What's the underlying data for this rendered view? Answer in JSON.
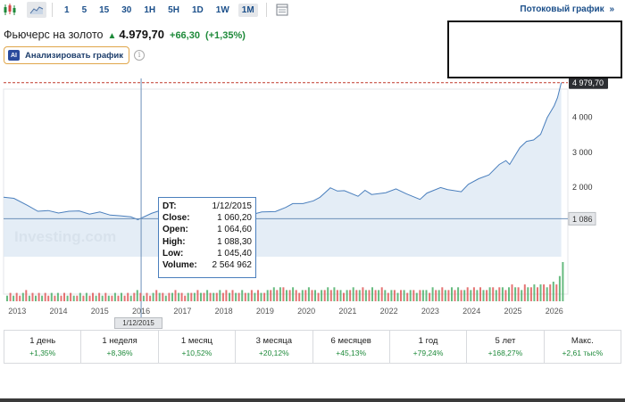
{
  "toolbar": {
    "periods": [
      "1",
      "5",
      "15",
      "30",
      "1H",
      "5H",
      "1D",
      "1W",
      "1M"
    ],
    "active_period": "1M",
    "stream_link": "Потоковый график",
    "stream_link_icon": "double-chevron-right-icon"
  },
  "instrument": {
    "name": "Фьючерс на золото",
    "price": "4.979,70",
    "change": "+66,30",
    "change_pct": "(+1,35%)",
    "direction_icon": "arrow-up-icon"
  },
  "analyze_button": {
    "badge": "AI",
    "label": "Анализировать график"
  },
  "tooltip": {
    "rows": [
      {
        "label": "DT:",
        "value": "1/12/2015"
      },
      {
        "label": "Close:",
        "value": "1 060,20"
      },
      {
        "label": "Open:",
        "value": "1 064,60"
      },
      {
        "label": "High:",
        "value": "1 088,30"
      },
      {
        "label": "Low:",
        "value": "1 045,40"
      },
      {
        "label": "Volume:",
        "value": "2 564 962"
      }
    ]
  },
  "crosshair_date": "1/12/2015",
  "watermark": "Investing.com",
  "colors": {
    "accent": "#1b4f8a",
    "positive": "#1e8a3a",
    "line": "#4a7fbd",
    "area": "#dde8f4",
    "last_price_line": "#c0392b",
    "vol_up": "#4caf6a",
    "vol_down": "#e15b5b"
  },
  "chart_data": {
    "type": "area",
    "title": "Фьючерс на золото",
    "ylim": [
      0,
      5100
    ],
    "y_ticks": [
      {
        "label": "1 086",
        "value": 1086
      },
      {
        "label": "2 000",
        "value": 2000
      },
      {
        "label": "3 000",
        "value": 3000
      },
      {
        "label": "4 000",
        "value": 4000
      },
      {
        "label": "4 979,70",
        "value": 4979.7
      }
    ],
    "last_price": 4979.7,
    "crosshair_value": 1086,
    "crosshair_year": 2016.0,
    "x_ticks": [
      "2013",
      "2014",
      "2015",
      "2016",
      "2017",
      "2018",
      "2019",
      "2020",
      "2021",
      "2022",
      "2023",
      "2024",
      "2025",
      "2026"
    ],
    "x_range": [
      2012.67,
      2026.33
    ],
    "series": [
      {
        "name": "Close",
        "points": [
          [
            2012.67,
            1700
          ],
          [
            2012.92,
            1670
          ],
          [
            2013.25,
            1470
          ],
          [
            2013.5,
            1300
          ],
          [
            2013.75,
            1320
          ],
          [
            2014.0,
            1250
          ],
          [
            2014.25,
            1300
          ],
          [
            2014.5,
            1310
          ],
          [
            2014.75,
            1220
          ],
          [
            2015.0,
            1280
          ],
          [
            2015.25,
            1190
          ],
          [
            2015.5,
            1170
          ],
          [
            2015.75,
            1140
          ],
          [
            2015.92,
            1060
          ],
          [
            2016.25,
            1240
          ],
          [
            2016.5,
            1340
          ],
          [
            2016.75,
            1270
          ],
          [
            2016.92,
            1150
          ],
          [
            2017.25,
            1250
          ],
          [
            2017.5,
            1250
          ],
          [
            2017.75,
            1280
          ],
          [
            2018.0,
            1340
          ],
          [
            2018.33,
            1310
          ],
          [
            2018.67,
            1200
          ],
          [
            2018.92,
            1280
          ],
          [
            2019.25,
            1290
          ],
          [
            2019.5,
            1410
          ],
          [
            2019.67,
            1520
          ],
          [
            2019.92,
            1520
          ],
          [
            2020.17,
            1600
          ],
          [
            2020.33,
            1700
          ],
          [
            2020.58,
            1970
          ],
          [
            2020.75,
            1880
          ],
          [
            2020.92,
            1890
          ],
          [
            2021.25,
            1730
          ],
          [
            2021.42,
            1900
          ],
          [
            2021.58,
            1780
          ],
          [
            2021.92,
            1830
          ],
          [
            2022.17,
            1940
          ],
          [
            2022.42,
            1800
          ],
          [
            2022.75,
            1640
          ],
          [
            2022.92,
            1820
          ],
          [
            2023.25,
            1980
          ],
          [
            2023.42,
            1920
          ],
          [
            2023.75,
            1860
          ],
          [
            2023.92,
            2070
          ],
          [
            2024.17,
            2230
          ],
          [
            2024.42,
            2340
          ],
          [
            2024.67,
            2640
          ],
          [
            2024.83,
            2750
          ],
          [
            2024.92,
            2640
          ],
          [
            2025.17,
            3120
          ],
          [
            2025.33,
            3300
          ],
          [
            2025.5,
            3340
          ],
          [
            2025.67,
            3500
          ],
          [
            2025.83,
            3980
          ],
          [
            2026.0,
            4320
          ],
          [
            2026.08,
            4550
          ],
          [
            2026.17,
            4980
          ]
        ]
      }
    ],
    "volume": [
      [
        1,
        2
      ],
      [
        0,
        3
      ],
      [
        1,
        2
      ],
      [
        0,
        3
      ],
      [
        0,
        2
      ],
      [
        1,
        3
      ],
      [
        0,
        4
      ],
      [
        1,
        2
      ],
      [
        0,
        3
      ],
      [
        1,
        2
      ],
      [
        0,
        3
      ],
      [
        1,
        2
      ],
      [
        0,
        3
      ],
      [
        0,
        2
      ],
      [
        1,
        3
      ],
      [
        0,
        2
      ],
      [
        1,
        3
      ],
      [
        0,
        2
      ],
      [
        0,
        3
      ],
      [
        1,
        2
      ],
      [
        0,
        3
      ],
      [
        1,
        2
      ],
      [
        0,
        2
      ],
      [
        1,
        3
      ],
      [
        0,
        2
      ],
      [
        1,
        3
      ],
      [
        0,
        2
      ],
      [
        0,
        3
      ],
      [
        1,
        2
      ],
      [
        0,
        3
      ],
      [
        1,
        2
      ],
      [
        0,
        3
      ],
      [
        1,
        2
      ],
      [
        0,
        2
      ],
      [
        1,
        3
      ],
      [
        0,
        2
      ],
      [
        1,
        3
      ],
      [
        0,
        2
      ],
      [
        0,
        3
      ],
      [
        1,
        2
      ],
      [
        0,
        3
      ],
      [
        1,
        4
      ],
      [
        0,
        3
      ],
      [
        1,
        2
      ],
      [
        0,
        3
      ],
      [
        0,
        2
      ],
      [
        1,
        3
      ],
      [
        0,
        4
      ],
      [
        1,
        3
      ],
      [
        0,
        3
      ],
      [
        1,
        2
      ],
      [
        0,
        3
      ],
      [
        1,
        3
      ],
      [
        0,
        4
      ],
      [
        1,
        3
      ],
      [
        0,
        3
      ],
      [
        0,
        2
      ],
      [
        1,
        3
      ],
      [
        0,
        3
      ],
      [
        1,
        3
      ],
      [
        0,
        4
      ],
      [
        1,
        3
      ],
      [
        0,
        3
      ],
      [
        1,
        4
      ],
      [
        0,
        3
      ],
      [
        1,
        3
      ],
      [
        0,
        3
      ],
      [
        1,
        4
      ],
      [
        0,
        3
      ],
      [
        0,
        4
      ],
      [
        1,
        3
      ],
      [
        0,
        4
      ],
      [
        1,
        3
      ],
      [
        0,
        3
      ],
      [
        1,
        4
      ],
      [
        0,
        3
      ],
      [
        1,
        3
      ],
      [
        0,
        4
      ],
      [
        1,
        3
      ],
      [
        0,
        4
      ],
      [
        1,
        3
      ],
      [
        0,
        3
      ],
      [
        1,
        4
      ],
      [
        0,
        4
      ],
      [
        1,
        5
      ],
      [
        0,
        4
      ],
      [
        1,
        5
      ],
      [
        0,
        5
      ],
      [
        1,
        4
      ],
      [
        0,
        4
      ],
      [
        1,
        5
      ],
      [
        0,
        4
      ],
      [
        0,
        3
      ],
      [
        1,
        4
      ],
      [
        0,
        4
      ],
      [
        1,
        5
      ],
      [
        0,
        4
      ],
      [
        1,
        4
      ],
      [
        0,
        3
      ],
      [
        1,
        4
      ],
      [
        0,
        4
      ],
      [
        1,
        5
      ],
      [
        0,
        4
      ],
      [
        1,
        5
      ],
      [
        0,
        4
      ],
      [
        1,
        4
      ],
      [
        0,
        3
      ],
      [
        1,
        4
      ],
      [
        0,
        4
      ],
      [
        1,
        5
      ],
      [
        0,
        4
      ],
      [
        1,
        4
      ],
      [
        0,
        5
      ],
      [
        1,
        4
      ],
      [
        0,
        4
      ],
      [
        1,
        5
      ],
      [
        0,
        4
      ],
      [
        1,
        4
      ],
      [
        0,
        5
      ],
      [
        1,
        4
      ],
      [
        0,
        3
      ],
      [
        1,
        4
      ],
      [
        0,
        4
      ],
      [
        1,
        3
      ],
      [
        0,
        4
      ],
      [
        1,
        4
      ],
      [
        0,
        3
      ],
      [
        1,
        4
      ],
      [
        0,
        4
      ],
      [
        1,
        3
      ],
      [
        0,
        4
      ],
      [
        1,
        4
      ],
      [
        1,
        4
      ],
      [
        0,
        3
      ],
      [
        1,
        5
      ],
      [
        0,
        4
      ],
      [
        1,
        4
      ],
      [
        0,
        5
      ],
      [
        1,
        4
      ],
      [
        0,
        4
      ],
      [
        1,
        5
      ],
      [
        0,
        4
      ],
      [
        1,
        5
      ],
      [
        0,
        4
      ],
      [
        1,
        4
      ],
      [
        0,
        5
      ],
      [
        1,
        4
      ],
      [
        0,
        5
      ],
      [
        1,
        4
      ],
      [
        0,
        5
      ],
      [
        1,
        4
      ],
      [
        0,
        4
      ],
      [
        1,
        5
      ],
      [
        0,
        5
      ],
      [
        1,
        4
      ],
      [
        0,
        5
      ],
      [
        1,
        5
      ],
      [
        0,
        4
      ],
      [
        1,
        5
      ],
      [
        0,
        6
      ],
      [
        1,
        5
      ],
      [
        0,
        5
      ],
      [
        1,
        4
      ],
      [
        0,
        6
      ],
      [
        1,
        5
      ],
      [
        0,
        5
      ],
      [
        1,
        6
      ],
      [
        0,
        5
      ],
      [
        1,
        6
      ],
      [
        0,
        6
      ],
      [
        1,
        5
      ],
      [
        0,
        6
      ],
      [
        1,
        7
      ],
      [
        0,
        6
      ],
      [
        1,
        9
      ],
      [
        1,
        14
      ]
    ],
    "volume_max": 14
  },
  "performance": [
    {
      "label": "1 день",
      "value": "+1,35%"
    },
    {
      "label": "1 неделя",
      "value": "+8,36%"
    },
    {
      "label": "1 месяц",
      "value": "+10,52%"
    },
    {
      "label": "3 месяца",
      "value": "+20,12%"
    },
    {
      "label": "6 месяцев",
      "value": "+45,13%"
    },
    {
      "label": "1 год",
      "value": "+79,24%"
    },
    {
      "label": "5 лет",
      "value": "+168,27%"
    },
    {
      "label": "Макс.",
      "value": "+2,61 тыс%"
    }
  ]
}
